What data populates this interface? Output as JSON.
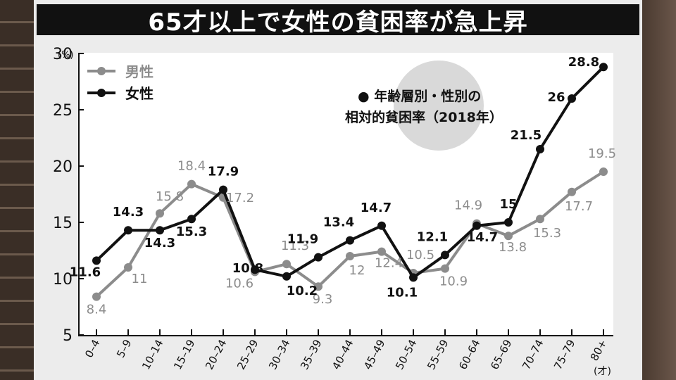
{
  "title": "65才以上で女性の貧困率が急上昇",
  "chart_data": {
    "type": "line",
    "annotation": [
      "● 年齢層別・性別の",
      "相対的貧困率（2018年）"
    ],
    "y_unit": "(%)",
    "x_unit": "(才)",
    "ylim": [
      5,
      30
    ],
    "yticks": [
      "5",
      "10",
      "15",
      "20",
      "25",
      "30"
    ],
    "categories": [
      "0–4",
      "5–9",
      "10–14",
      "15–19",
      "20–24",
      "25–29",
      "30–34",
      "35–39",
      "40–44",
      "45–49",
      "50–54",
      "55–59",
      "60–64",
      "65–69",
      "70–74",
      "75–79",
      "80+"
    ],
    "legend_position": "top-left",
    "grid": false,
    "series": [
      {
        "name": "男性",
        "color": "#8c8c8c",
        "values": [
          8.4,
          11,
          15.8,
          18.4,
          17.2,
          10.6,
          11.3,
          9.3,
          12,
          12.4,
          10.5,
          10.9,
          14.9,
          13.8,
          15.3,
          17.7,
          19.5
        ],
        "labels": [
          "8.4",
          "11",
          "15.8",
          "18.4",
          "17.2",
          "10.6",
          "11.3",
          "9.3",
          "12",
          "12.4",
          "10.5",
          "10.9",
          "14.9",
          "13.8",
          "15.3",
          "17.7",
          "19.5"
        ]
      },
      {
        "name": "女性",
        "color": "#111111",
        "values": [
          11.6,
          14.3,
          14.3,
          15.3,
          17.9,
          10.8,
          10.2,
          11.9,
          13.4,
          14.7,
          10.1,
          12.1,
          14.7,
          15,
          21.5,
          26,
          28.8
        ],
        "labels": [
          "11.6",
          "14.3",
          "14.3",
          "15.3",
          "17.9",
          "10.8",
          "10.2",
          "11.9",
          "13.4",
          "14.7",
          "10.1",
          "12.1",
          "14.7",
          "15",
          "21.5",
          "26",
          "28.8"
        ]
      }
    ]
  }
}
